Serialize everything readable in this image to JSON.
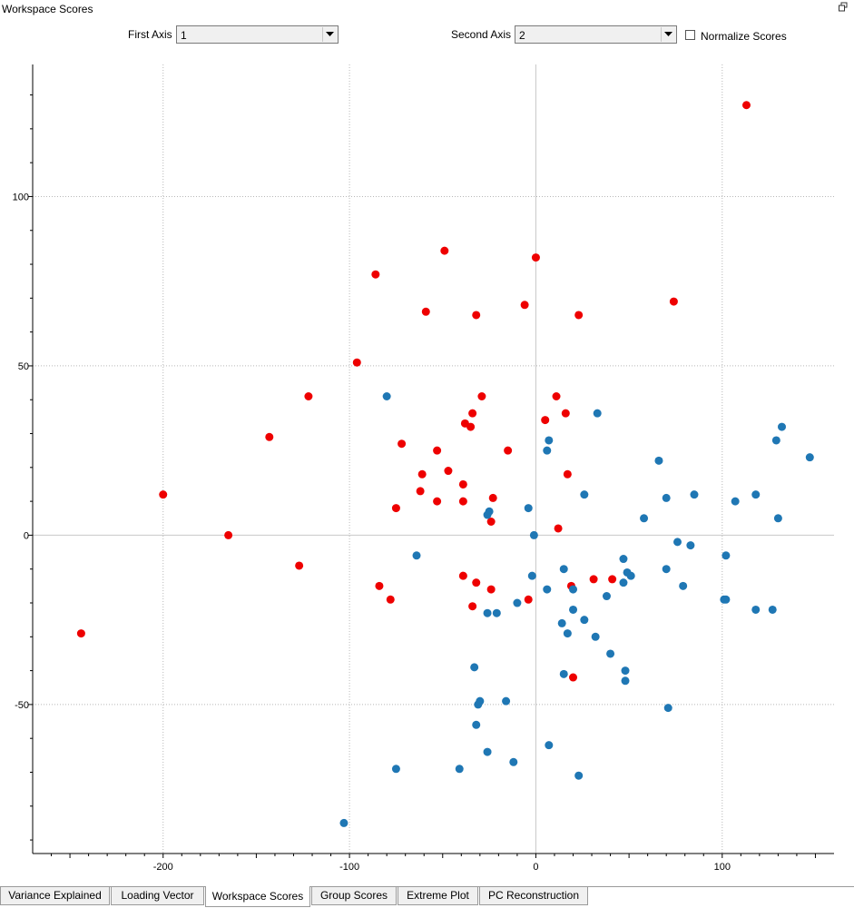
{
  "panel": {
    "title": "Workspace Scores",
    "restore_icon": "restore-window-icon"
  },
  "controls": {
    "first_axis": {
      "label": "First Axis",
      "value": "1"
    },
    "second_axis": {
      "label": "Second Axis",
      "value": "2"
    },
    "normalize": {
      "label": "Normalize Scores",
      "checked": false
    }
  },
  "tabs": [
    {
      "label": "Variance Explained",
      "active": false
    },
    {
      "label": "Loading Vector",
      "active": false
    },
    {
      "label": "Workspace Scores",
      "active": true
    },
    {
      "label": "Group Scores",
      "active": false
    },
    {
      "label": "Extreme Plot",
      "active": false
    },
    {
      "label": "PC Reconstruction",
      "active": false
    }
  ],
  "chart_data": {
    "type": "scatter",
    "title": "",
    "xlabel": "",
    "ylabel": "",
    "xlim": [
      -270,
      160
    ],
    "ylim": [
      -94,
      139
    ],
    "x_ticks": [
      -200,
      -100,
      0,
      100
    ],
    "y_ticks": [
      -50,
      0,
      50,
      100
    ],
    "grid": true,
    "series": [
      {
        "color": "#ee0000",
        "points": [
          [
            113,
            127
          ],
          [
            -49,
            84
          ],
          [
            0,
            82
          ],
          [
            -86,
            77
          ],
          [
            74,
            69
          ],
          [
            -6,
            68
          ],
          [
            -59,
            66
          ],
          [
            -32,
            65
          ],
          [
            23,
            65
          ],
          [
            -96,
            51
          ],
          [
            -122,
            41
          ],
          [
            -29,
            41
          ],
          [
            11,
            41
          ],
          [
            -34,
            36
          ],
          [
            16,
            36
          ],
          [
            5,
            34
          ],
          [
            -38,
            33
          ],
          [
            -35,
            32
          ],
          [
            -143,
            29
          ],
          [
            -72,
            27
          ],
          [
            -15,
            25
          ],
          [
            -53,
            25
          ],
          [
            -47,
            19
          ],
          [
            -61,
            18
          ],
          [
            17,
            18
          ],
          [
            -39,
            15
          ],
          [
            -62,
            13
          ],
          [
            -200,
            12
          ],
          [
            -23,
            11
          ],
          [
            -53,
            10
          ],
          [
            -39,
            10
          ],
          [
            -75,
            8
          ],
          [
            -24,
            4
          ],
          [
            12,
            2
          ],
          [
            -165,
            0
          ],
          [
            -127,
            -9
          ],
          [
            -39,
            -12
          ],
          [
            31,
            -13
          ],
          [
            41,
            -13
          ],
          [
            -32,
            -14
          ],
          [
            -84,
            -15
          ],
          [
            19,
            -15
          ],
          [
            -24,
            -16
          ],
          [
            -78,
            -19
          ],
          [
            -4,
            -19
          ],
          [
            -34,
            -21
          ],
          [
            -244,
            -29
          ],
          [
            20,
            -42
          ]
        ]
      },
      {
        "color": "#1f77b4",
        "points": [
          [
            -80,
            41
          ],
          [
            33,
            36
          ],
          [
            132,
            32
          ],
          [
            129,
            28
          ],
          [
            7,
            28
          ],
          [
            6,
            25
          ],
          [
            147,
            23
          ],
          [
            66,
            22
          ],
          [
            26,
            12
          ],
          [
            85,
            12
          ],
          [
            118,
            12
          ],
          [
            70,
            11
          ],
          [
            107,
            10
          ],
          [
            -4,
            8
          ],
          [
            -25,
            7
          ],
          [
            -26,
            6
          ],
          [
            130,
            5
          ],
          [
            58,
            5
          ],
          [
            -1,
            0
          ],
          [
            76,
            -2
          ],
          [
            83,
            -3
          ],
          [
            -64,
            -6
          ],
          [
            102,
            -6
          ],
          [
            47,
            -7
          ],
          [
            70,
            -10
          ],
          [
            15,
            -10
          ],
          [
            49,
            -11
          ],
          [
            -2,
            -12
          ],
          [
            51,
            -12
          ],
          [
            47,
            -14
          ],
          [
            79,
            -15
          ],
          [
            20,
            -16
          ],
          [
            6,
            -16
          ],
          [
            38,
            -18
          ],
          [
            101,
            -19
          ],
          [
            102,
            -19
          ],
          [
            -10,
            -20
          ],
          [
            20,
            -22
          ],
          [
            118,
            -22
          ],
          [
            127,
            -22
          ],
          [
            -21,
            -23
          ],
          [
            -26,
            -23
          ],
          [
            26,
            -25
          ],
          [
            14,
            -26
          ],
          [
            17,
            -29
          ],
          [
            32,
            -30
          ],
          [
            40,
            -35
          ],
          [
            -33,
            -39
          ],
          [
            48,
            -40
          ],
          [
            15,
            -41
          ],
          [
            48,
            -43
          ],
          [
            -30,
            -49
          ],
          [
            -16,
            -49
          ],
          [
            -31,
            -50
          ],
          [
            71,
            -51
          ],
          [
            -32,
            -56
          ],
          [
            7,
            -62
          ],
          [
            -26,
            -64
          ],
          [
            -12,
            -67
          ],
          [
            -41,
            -69
          ],
          [
            -75,
            -69
          ],
          [
            23,
            -71
          ],
          [
            -103,
            -85
          ]
        ]
      }
    ]
  }
}
